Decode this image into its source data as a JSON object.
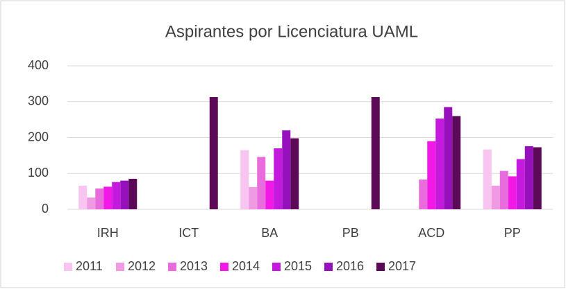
{
  "chart_data": {
    "type": "bar",
    "title": "Aspirantes por Licenciatura UAML",
    "categories": [
      "IRH",
      "ICT",
      "BA",
      "PB",
      "ACD",
      "PP"
    ],
    "series": [
      {
        "name": "2011",
        "color": "#f8c4f0",
        "values": [
          66,
          null,
          165,
          null,
          null,
          167
        ]
      },
      {
        "name": "2012",
        "color": "#f09ae4",
        "values": [
          33,
          null,
          62,
          null,
          null,
          66
        ]
      },
      {
        "name": "2013",
        "color": "#e86cdc",
        "values": [
          58,
          null,
          146,
          null,
          83,
          107
        ]
      },
      {
        "name": "2014",
        "color": "#f218e6",
        "values": [
          63,
          null,
          80,
          null,
          190,
          92
        ]
      },
      {
        "name": "2015",
        "color": "#c41ade",
        "values": [
          76,
          null,
          170,
          null,
          253,
          140
        ]
      },
      {
        "name": "2016",
        "color": "#9610bc",
        "values": [
          80,
          null,
          220,
          null,
          285,
          176
        ]
      },
      {
        "name": "2017",
        "color": "#5c0a58",
        "values": [
          85,
          313,
          198,
          313,
          260,
          173
        ]
      }
    ],
    "ylim": [
      0,
      400
    ],
    "yticks": [
      0,
      100,
      200,
      300,
      400
    ],
    "grid": true,
    "legend": "bottom"
  }
}
